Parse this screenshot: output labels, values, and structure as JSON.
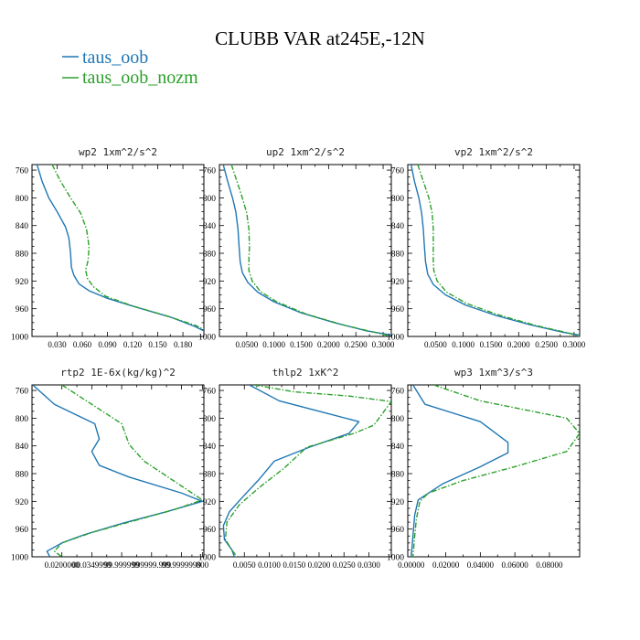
{
  "figure": {
    "title": "CLUBB VAR at245E,-12N",
    "legend": [
      {
        "label": "taus_oob",
        "color": "#1f77b4",
        "dash": "solid"
      },
      {
        "label": "taus_oob_nozm",
        "color": "#2ca02c",
        "dash": "dashdot"
      }
    ]
  },
  "chart_data": [
    {
      "type": "line",
      "title": "wp2  1xm^2/s^2",
      "ylim": [
        1000,
        752
      ],
      "xlim": [
        0.0,
        0.205
      ],
      "yticks": [
        "760",
        "800",
        "840",
        "880",
        "920",
        "960",
        "1000"
      ],
      "xticks": [
        "0.030",
        "0.060",
        "0.090",
        "0.120",
        "0.150",
        "0.180"
      ],
      "xtick_values": [
        0.03,
        0.06,
        0.09,
        0.12,
        0.15,
        0.18
      ],
      "series": [
        {
          "name": "taus_oob",
          "color": "#1f77b4",
          "dash": "solid",
          "points": [
            [
              0.006,
              752
            ],
            [
              0.012,
              776
            ],
            [
              0.02,
              800
            ],
            [
              0.03,
              820
            ],
            [
              0.04,
              842
            ],
            [
              0.044,
              858
            ],
            [
              0.046,
              880
            ],
            [
              0.047,
              900
            ],
            [
              0.05,
              912
            ],
            [
              0.056,
              924
            ],
            [
              0.068,
              934
            ],
            [
              0.09,
              945
            ],
            [
              0.125,
              958
            ],
            [
              0.165,
              972
            ],
            [
              0.195,
              986
            ],
            [
              0.205,
              992
            ]
          ]
        },
        {
          "name": "taus_oob_nozm",
          "color": "#2ca02c",
          "dash": "dashdot",
          "points": [
            [
              0.024,
              752
            ],
            [
              0.034,
              776
            ],
            [
              0.046,
              800
            ],
            [
              0.058,
              822
            ],
            [
              0.065,
              845
            ],
            [
              0.068,
              870
            ],
            [
              0.067,
              890
            ],
            [
              0.064,
              904
            ],
            [
              0.066,
              916
            ],
            [
              0.073,
              928
            ],
            [
              0.088,
              942
            ],
            [
              0.12,
              956
            ],
            [
              0.16,
              970
            ],
            [
              0.195,
              984
            ],
            [
              0.205,
              990
            ]
          ]
        }
      ]
    },
    {
      "type": "line",
      "title": "up2  1xm^2/s^2",
      "ylim": [
        1000,
        752
      ],
      "xlim": [
        0.0,
        0.315
      ],
      "yticks": [
        "760",
        "800",
        "840",
        "880",
        "920",
        "960",
        "1000"
      ],
      "xticks": [
        "0.0500",
        "0.1000",
        "0.1500",
        "0.2000",
        "0.2500",
        "0.3000"
      ],
      "xtick_values": [
        0.05,
        0.1,
        0.15,
        0.2,
        0.25,
        0.3
      ],
      "series": [
        {
          "name": "taus_oob",
          "color": "#1f77b4",
          "dash": "solid",
          "points": [
            [
              0.007,
              752
            ],
            [
              0.015,
              776
            ],
            [
              0.024,
              800
            ],
            [
              0.03,
              820
            ],
            [
              0.034,
              845
            ],
            [
              0.036,
              870
            ],
            [
              0.038,
              892
            ],
            [
              0.042,
              908
            ],
            [
              0.052,
              922
            ],
            [
              0.07,
              936
            ],
            [
              0.1,
              950
            ],
            [
              0.15,
              966
            ],
            [
              0.21,
              980
            ],
            [
              0.27,
              992
            ],
            [
              0.315,
              998
            ]
          ]
        },
        {
          "name": "taus_oob_nozm",
          "color": "#2ca02c",
          "dash": "dashdot",
          "points": [
            [
              0.022,
              752
            ],
            [
              0.032,
              776
            ],
            [
              0.042,
              800
            ],
            [
              0.05,
              822
            ],
            [
              0.054,
              845
            ],
            [
              0.055,
              870
            ],
            [
              0.054,
              890
            ],
            [
              0.054,
              905
            ],
            [
              0.06,
              920
            ],
            [
              0.075,
              935
            ],
            [
              0.105,
              950
            ],
            [
              0.16,
              968
            ],
            [
              0.23,
              984
            ],
            [
              0.29,
              995
            ],
            [
              0.315,
              1000
            ]
          ]
        }
      ]
    },
    {
      "type": "line",
      "title": "vp2  1xm^2/s^2",
      "ylim": [
        1000,
        752
      ],
      "xlim": [
        0.0,
        0.31
      ],
      "yticks": [
        "760",
        "800",
        "840",
        "880",
        "920",
        "960",
        "1000"
      ],
      "xticks": [
        "0.0500",
        "0.1000",
        "0.1500",
        "0.2000",
        "0.2500",
        "0.3000"
      ],
      "xtick_values": [
        0.05,
        0.1,
        0.15,
        0.2,
        0.25,
        0.3
      ],
      "series": [
        {
          "name": "taus_oob",
          "color": "#1f77b4",
          "dash": "solid",
          "points": [
            [
              0.006,
              752
            ],
            [
              0.012,
              776
            ],
            [
              0.02,
              800
            ],
            [
              0.025,
              822
            ],
            [
              0.028,
              845
            ],
            [
              0.03,
              870
            ],
            [
              0.032,
              892
            ],
            [
              0.036,
              910
            ],
            [
              0.046,
              925
            ],
            [
              0.068,
              940
            ],
            [
              0.105,
              955
            ],
            [
              0.16,
              970
            ],
            [
              0.22,
              983
            ],
            [
              0.28,
              994
            ],
            [
              0.31,
              998
            ]
          ]
        },
        {
          "name": "taus_oob_nozm",
          "color": "#2ca02c",
          "dash": "dashdot",
          "points": [
            [
              0.018,
              752
            ],
            [
              0.028,
              776
            ],
            [
              0.038,
              800
            ],
            [
              0.044,
              822
            ],
            [
              0.046,
              845
            ],
            [
              0.046,
              870
            ],
            [
              0.046,
              890
            ],
            [
              0.047,
              905
            ],
            [
              0.053,
              920
            ],
            [
              0.07,
              936
            ],
            [
              0.105,
              952
            ],
            [
              0.16,
              968
            ],
            [
              0.23,
              984
            ],
            [
              0.29,
              995
            ],
            [
              0.31,
              1000
            ]
          ]
        }
      ]
    },
    {
      "type": "line",
      "title": "rtp2  1E-6x(kg/kg)^2",
      "ylim": [
        1000,
        752
      ],
      "xlim": [
        0.0,
        1.15e-08
      ],
      "yticks": [
        "760",
        "800",
        "840",
        "880",
        "920",
        "960",
        "1000"
      ],
      "xticks": [
        "0.0200000",
        "00.0349999",
        "99.999999",
        "999999.999",
        "99.9999999",
        "800"
      ],
      "xtick_values": [
        2e-09,
        4e-09,
        6e-09,
        8e-09,
        1e-08,
        1.14e-08
      ],
      "series": [
        {
          "name": "taus_oob",
          "color": "#1f77b4",
          "dash": "solid",
          "points": [
            [
              5e-11,
              752
            ],
            [
              1.5e-09,
              780
            ],
            [
              4.2e-09,
              808
            ],
            [
              4.5e-09,
              830
            ],
            [
              4e-09,
              848
            ],
            [
              4.5e-09,
              868
            ],
            [
              6.5e-09,
              885
            ],
            [
              1e-08,
              908
            ],
            [
              1.14e-08,
              920
            ],
            [
              9e-09,
              935
            ],
            [
              6e-09,
              952
            ],
            [
              3.5e-09,
              968
            ],
            [
              2e-09,
              980
            ],
            [
              1e-09,
              992
            ],
            [
              1.2e-09,
              1000
            ]
          ]
        },
        {
          "name": "taus_oob_nozm",
          "color": "#2ca02c",
          "dash": "dashdot",
          "points": [
            [
              2e-09,
              752
            ],
            [
              4e-09,
              780
            ],
            [
              6e-09,
              808
            ],
            [
              6.5e-09,
              838
            ],
            [
              7.5e-09,
              862
            ],
            [
              1.05e-08,
              905
            ],
            [
              1.14e-08,
              918
            ],
            [
              9.5e-09,
              932
            ],
            [
              6.5e-09,
              950
            ],
            [
              4e-09,
              965
            ],
            [
              2e-09,
              980
            ],
            [
              1.5e-09,
              992
            ],
            [
              2e-09,
              1000
            ]
          ]
        }
      ]
    },
    {
      "type": "line",
      "title": "thlp2  1xK^2",
      "ylim": [
        1000,
        752
      ],
      "xlim": [
        0.0,
        0.0345
      ],
      "yticks": [
        "760",
        "800",
        "840",
        "880",
        "920",
        "960",
        "1000"
      ],
      "xticks": [
        "0.0050",
        "0.0100",
        "0.0150",
        "0.0200",
        "0.0250",
        "0.0300"
      ],
      "xtick_values": [
        0.005,
        0.01,
        0.015,
        0.02,
        0.025,
        0.03
      ],
      "series": [
        {
          "name": "taus_oob",
          "color": "#1f77b4",
          "dash": "solid",
          "points": [
            [
              0.006,
              752
            ],
            [
              0.012,
              775
            ],
            [
              0.02,
              790
            ],
            [
              0.028,
              805
            ],
            [
              0.026,
              822
            ],
            [
              0.018,
              842
            ],
            [
              0.011,
              862
            ],
            [
              0.008,
              888
            ],
            [
              0.0045,
              915
            ],
            [
              0.002,
              935
            ],
            [
              0.0008,
              955
            ],
            [
              0.001,
              975
            ],
            [
              0.0025,
              990
            ],
            [
              0.003,
              1000
            ]
          ]
        },
        {
          "name": "taus_oob_nozm",
          "color": "#2ca02c",
          "dash": "dashdot",
          "points": [
            [
              0.007,
              752
            ],
            [
              0.015,
              762
            ],
            [
              0.026,
              768
            ],
            [
              0.0345,
              776
            ],
            [
              0.031,
              810
            ],
            [
              0.027,
              822
            ],
            [
              0.0175,
              842
            ],
            [
              0.013,
              872
            ],
            [
              0.008,
              900
            ],
            [
              0.004,
              925
            ],
            [
              0.0015,
              950
            ],
            [
              0.0012,
              975
            ],
            [
              0.0025,
              990
            ],
            [
              0.0035,
              1000
            ]
          ]
        }
      ]
    },
    {
      "type": "line",
      "title": "wp3  1xm^3/s^3",
      "ylim": [
        1000,
        752
      ],
      "xlim": [
        -0.002,
        0.0975
      ],
      "yticks": [
        "760",
        "800",
        "840",
        "880",
        "920",
        "960",
        "1000"
      ],
      "xticks": [
        "0.00000",
        "0.02000",
        "0.04000",
        "0.06000",
        "0.08000"
      ],
      "xtick_values": [
        0.0,
        0.02,
        0.04,
        0.06,
        0.08
      ],
      "series": [
        {
          "name": "taus_oob",
          "color": "#1f77b4",
          "dash": "solid",
          "points": [
            [
              0.001,
              752
            ],
            [
              0.008,
              780
            ],
            [
              0.04,
              805
            ],
            [
              0.056,
              835
            ],
            [
              0.056,
              850
            ],
            [
              0.04,
              870
            ],
            [
              0.018,
              895
            ],
            [
              0.004,
              918
            ],
            [
              0.002,
              940
            ],
            [
              0.001,
              970
            ],
            [
              0.0,
              1000
            ]
          ]
        },
        {
          "name": "taus_oob_nozm",
          "color": "#2ca02c",
          "dash": "dashdot",
          "points": [
            [
              0.013,
              752
            ],
            [
              0.04,
              775
            ],
            [
              0.09,
              800
            ],
            [
              0.0975,
              822
            ],
            [
              0.09,
              848
            ],
            [
              0.06,
              870
            ],
            [
              0.03,
              890
            ],
            [
              0.01,
              908
            ],
            [
              0.005,
              920
            ],
            [
              0.003,
              945
            ],
            [
              0.002,
              970
            ],
            [
              0.001,
              1000
            ]
          ]
        }
      ]
    }
  ]
}
